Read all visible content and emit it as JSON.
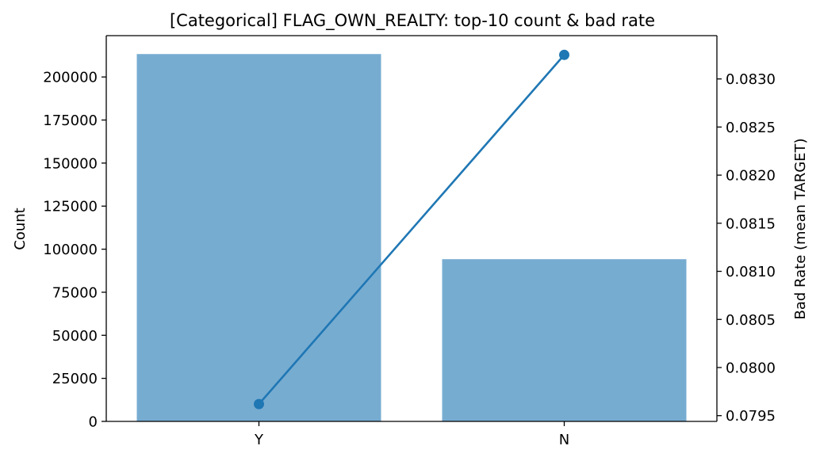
{
  "chart_data": {
    "type": "bar",
    "title": "[Categorical] FLAG_OWN_REALTY: top-10 count & bad rate",
    "categories": [
      "Y",
      "N"
    ],
    "ylabel": "Count",
    "y2label": "Bad Rate (mean TARGET)",
    "ylim": [
      0,
      224000
    ],
    "y2lim": [
      0.07944,
      0.08345
    ],
    "yticks": [
      0,
      25000,
      50000,
      75000,
      100000,
      125000,
      150000,
      175000,
      200000
    ],
    "y2ticks": [
      "0.0795",
      "0.0800",
      "0.0805",
      "0.0810",
      "0.0815",
      "0.0820",
      "0.0825",
      "0.0830"
    ],
    "series": [
      {
        "name": "Count",
        "type": "bar",
        "axis": "left",
        "color": "#77acd1",
        "values": [
          213312,
          94199
        ]
      },
      {
        "name": "Bad Rate",
        "type": "line",
        "axis": "right",
        "color": "#1f77b4",
        "values": [
          0.07962,
          0.08325
        ]
      }
    ],
    "grid": false
  }
}
